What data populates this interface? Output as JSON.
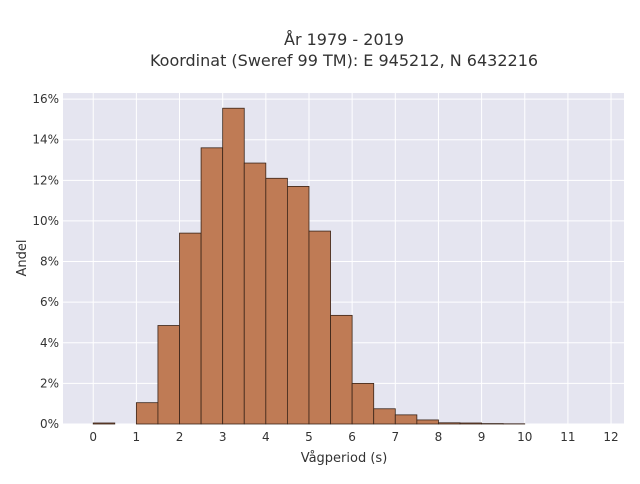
{
  "chart_data": {
    "type": "bar",
    "title_line1": "År 1979 - 2019",
    "title_line2": "Koordinat (Sweref 99 TM): E 945212, N 6432216",
    "xlabel": "Vågperiod (s)",
    "ylabel": "Andel",
    "xlim": [
      -0.7,
      12.3
    ],
    "ylim": [
      0,
      16.3
    ],
    "x_ticks": [
      0,
      1,
      2,
      3,
      4,
      5,
      6,
      7,
      8,
      9,
      10,
      11,
      12
    ],
    "x_tick_labels": [
      "0",
      "1",
      "2",
      "3",
      "4",
      "5",
      "6",
      "7",
      "8",
      "9",
      "10",
      "11",
      "12"
    ],
    "y_ticks": [
      0,
      2,
      4,
      6,
      8,
      10,
      12,
      14,
      16
    ],
    "y_tick_labels": [
      "0%",
      "2%",
      "4%",
      "6%",
      "8%",
      "10%",
      "12%",
      "14%",
      "16%"
    ],
    "bin_width": 0.5,
    "bins": [
      {
        "x0": 0.0,
        "x1": 0.5,
        "value": 0.05
      },
      {
        "x0": 1.0,
        "x1": 1.5,
        "value": 1.05
      },
      {
        "x0": 1.5,
        "x1": 2.0,
        "value": 4.85
      },
      {
        "x0": 2.0,
        "x1": 2.5,
        "value": 9.4
      },
      {
        "x0": 2.5,
        "x1": 3.0,
        "value": 13.6
      },
      {
        "x0": 3.0,
        "x1": 3.5,
        "value": 15.55
      },
      {
        "x0": 3.5,
        "x1": 4.0,
        "value": 12.85
      },
      {
        "x0": 4.0,
        "x1": 4.5,
        "value": 12.1
      },
      {
        "x0": 4.5,
        "x1": 5.0,
        "value": 11.7
      },
      {
        "x0": 5.0,
        "x1": 5.5,
        "value": 9.5
      },
      {
        "x0": 5.5,
        "x1": 6.0,
        "value": 5.35
      },
      {
        "x0": 6.0,
        "x1": 6.5,
        "value": 2.0
      },
      {
        "x0": 6.5,
        "x1": 7.0,
        "value": 0.75
      },
      {
        "x0": 7.0,
        "x1": 7.5,
        "value": 0.45
      },
      {
        "x0": 7.5,
        "x1": 8.0,
        "value": 0.2
      },
      {
        "x0": 8.0,
        "x1": 8.5,
        "value": 0.06
      },
      {
        "x0": 8.5,
        "x1": 9.0,
        "value": 0.05
      },
      {
        "x0": 9.0,
        "x1": 9.5,
        "value": 0.02
      },
      {
        "x0": 9.5,
        "x1": 10.0,
        "value": 0.01
      }
    ],
    "grid": true,
    "colors": {
      "bar_fill": "#bf7b55",
      "bar_stroke": "#3a2418",
      "plot_background": "#e5e5f0",
      "grid_line": "#ffffff",
      "text": "#333333"
    }
  }
}
